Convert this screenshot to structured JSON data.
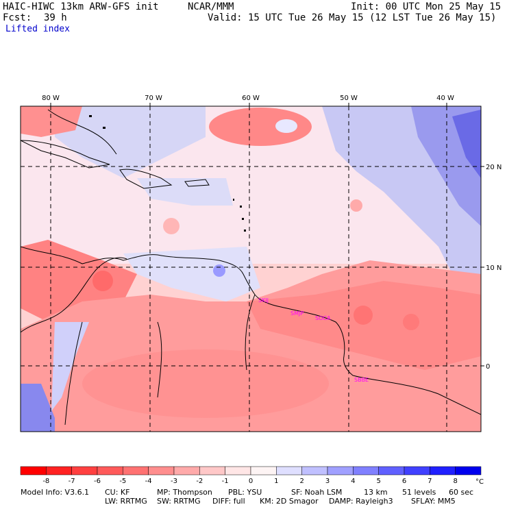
{
  "header": {
    "model": "HAIC-HIWC 13km ARW-GFS init",
    "org": "NCAR/MMM",
    "init": "Init: 00 UTC Mon 25 May 15",
    "fcst_label": "Fcst:",
    "fcst_value": "39 h",
    "valid": "Valid: 15 UTC Tue 26 May 15 (12 LST Tue 26 May 15)",
    "field": "Lifted index"
  },
  "map": {
    "lon_labels": [
      "80 W",
      "70 W",
      "60 W",
      "50 W",
      "40 W"
    ],
    "lat_labels": [
      "20 N",
      "10 N",
      "0"
    ],
    "stations": [
      "SKIJ",
      "SMJP",
      "SOCA",
      "SBBE"
    ]
  },
  "colorbar": {
    "labels": [
      "-8",
      "-7",
      "-6",
      "-5",
      "-4",
      "-3",
      "-2",
      "-1",
      "0",
      "1",
      "2",
      "3",
      "4",
      "5",
      "6",
      "7",
      "8"
    ],
    "unit": "°C",
    "colors": [
      "#ff0000",
      "#ff2222",
      "#ff4040",
      "#ff5a5a",
      "#ff7272",
      "#ff8e8e",
      "#ffaaaa",
      "#ffc8c8",
      "#ffe6e6",
      "#fdf4f4",
      "#dfdfff",
      "#c0c0ff",
      "#a0a0ff",
      "#8080ff",
      "#6060ff",
      "#4040ff",
      "#2020ff",
      "#0000ee"
    ]
  },
  "footer": {
    "line1": [
      "Model Info: V3.6.1",
      "CU: KF",
      "MP: Thompson",
      "PBL: YSU",
      "SF: Noah LSM",
      "13 km",
      "51 levels",
      "60 sec"
    ],
    "line2": [
      "LW: RRTMG",
      "SW: RRTMG",
      "DIFF: full",
      "KM: 2D Smagor",
      "DAMP: Rayleigh3",
      "SFLAY: MM5"
    ]
  }
}
